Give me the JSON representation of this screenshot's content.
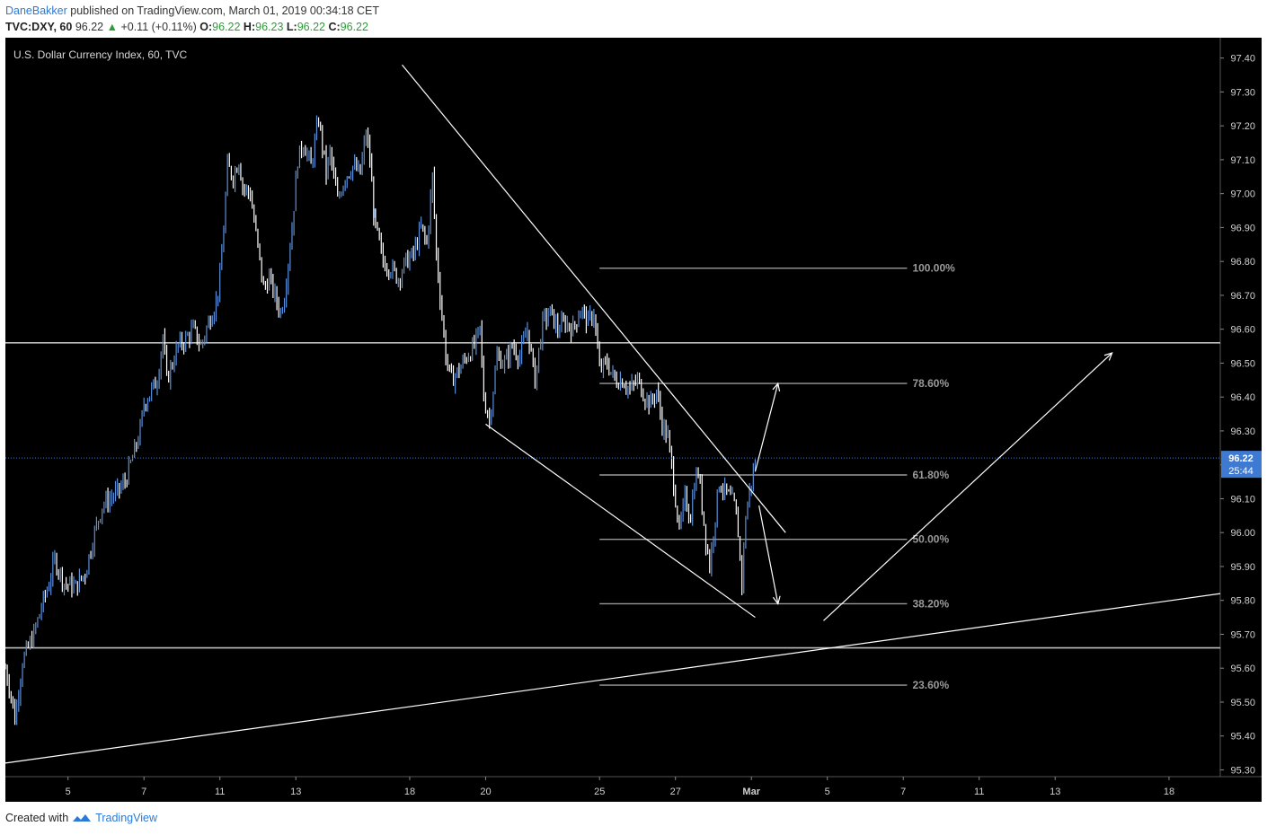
{
  "header": {
    "author": "DaneBakker",
    "published_text": "published on TradingView.com, March 01, 2019 00:34:18 CET",
    "symbol": "TVC:DXY, 60",
    "last_price": "96.22",
    "change": "+0.11 (+0.11%)",
    "o_label": "O:",
    "o_value": "96.22",
    "h_label": "H:",
    "h_value": "96.23",
    "l_label": "L:",
    "l_value": "96.22",
    "c_label": "C:",
    "c_value": "96.22"
  },
  "footer": {
    "created_with": "Created with",
    "brand": "TradingView"
  },
  "colors": {
    "background": "#000000",
    "up_candle": "#5b8fd9",
    "down_candle": "#ffffff",
    "price_tag": "#3f7ad2",
    "fib_line": "#9a9a9a",
    "trend_line": "#ffffff"
  },
  "chart_data": {
    "type": "candlestick",
    "title": "U.S. Dollar Currency Index, 60, TVC",
    "ylim": [
      95.28,
      97.46
    ],
    "y_ticks": [
      "97.40",
      "97.30",
      "97.20",
      "97.10",
      "97.00",
      "96.90",
      "96.80",
      "96.70",
      "96.60",
      "96.50",
      "96.40",
      "96.30",
      "96.20",
      "96.10",
      "96.00",
      "95.90",
      "95.80",
      "95.70",
      "95.60",
      "95.50",
      "95.40",
      "95.30"
    ],
    "x_ticks": [
      {
        "label": "5",
        "day": 0
      },
      {
        "label": "7",
        "day": 2
      },
      {
        "label": "11",
        "day": 4
      },
      {
        "label": "13",
        "day": 6
      },
      {
        "label": "18",
        "day": 9
      },
      {
        "label": "20",
        "day": 11
      },
      {
        "label": "25",
        "day": 14
      },
      {
        "label": "27",
        "day": 16
      },
      {
        "label": "Mar",
        "day": 18
      },
      {
        "label": "5",
        "day": 20
      },
      {
        "label": "7",
        "day": 22
      },
      {
        "label": "11",
        "day": 24
      },
      {
        "label": "13",
        "day": 26
      },
      {
        "label": "18",
        "day": 29
      }
    ],
    "x_range_days": [
      -1.65,
      30.35
    ],
    "price_path": [
      [
        -1.65,
        95.6
      ],
      [
        -1.5,
        95.52
      ],
      [
        -1.4,
        95.45
      ],
      [
        -1.2,
        95.62
      ],
      [
        -0.9,
        95.7
      ],
      [
        -0.7,
        95.78
      ],
      [
        -0.5,
        95.85
      ],
      [
        -0.35,
        95.92
      ],
      [
        -0.1,
        95.85
      ],
      [
        0.2,
        95.84
      ],
      [
        0.45,
        95.88
      ],
      [
        0.7,
        96.0
      ],
      [
        0.9,
        96.08
      ],
      [
        1.1,
        96.1
      ],
      [
        1.3,
        96.12
      ],
      [
        1.5,
        96.15
      ],
      [
        1.7,
        96.22
      ],
      [
        1.9,
        96.3
      ],
      [
        2.0,
        96.38
      ],
      [
        2.2,
        96.42
      ],
      [
        2.35,
        96.45
      ],
      [
        2.5,
        96.58
      ],
      [
        2.6,
        96.45
      ],
      [
        2.75,
        96.5
      ],
      [
        2.9,
        96.55
      ],
      [
        3.1,
        96.57
      ],
      [
        3.3,
        96.6
      ],
      [
        3.5,
        96.55
      ],
      [
        3.7,
        96.62
      ],
      [
        3.9,
        96.68
      ],
      [
        4.0,
        96.75
      ],
      [
        4.1,
        96.9
      ],
      [
        4.2,
        97.08
      ],
      [
        4.35,
        97.05
      ],
      [
        4.5,
        97.1
      ],
      [
        4.6,
        97.02
      ],
      [
        4.8,
        97.0
      ],
      [
        4.95,
        96.88
      ],
      [
        5.15,
        96.72
      ],
      [
        5.3,
        96.75
      ],
      [
        5.5,
        96.68
      ],
      [
        5.6,
        96.65
      ],
      [
        5.7,
        96.7
      ],
      [
        5.9,
        96.9
      ],
      [
        6.05,
        97.1
      ],
      [
        6.2,
        97.15
      ],
      [
        6.4,
        97.08
      ],
      [
        6.6,
        97.22
      ],
      [
        6.8,
        97.06
      ],
      [
        6.9,
        97.12
      ],
      [
        7.1,
        96.98
      ],
      [
        7.3,
        97.05
      ],
      [
        7.5,
        97.08
      ],
      [
        7.7,
        97.06
      ],
      [
        7.85,
        97.18
      ],
      [
        7.95,
        97.1
      ],
      [
        8.05,
        96.95
      ],
      [
        8.1,
        96.9
      ],
      [
        8.3,
        96.8
      ],
      [
        8.5,
        96.78
      ],
      [
        8.7,
        96.75
      ],
      [
        8.9,
        96.8
      ],
      [
        9.1,
        96.82
      ],
      [
        9.3,
        96.9
      ],
      [
        9.45,
        96.85
      ],
      [
        9.6,
        97.05
      ],
      [
        9.7,
        96.82
      ],
      [
        9.8,
        96.7
      ],
      [
        9.95,
        96.52
      ],
      [
        10.1,
        96.45
      ],
      [
        10.3,
        96.48
      ],
      [
        10.5,
        96.52
      ],
      [
        10.7,
        96.55
      ],
      [
        10.85,
        96.6
      ],
      [
        10.95,
        96.4
      ],
      [
        11.1,
        96.33
      ],
      [
        11.3,
        96.52
      ],
      [
        11.5,
        96.5
      ],
      [
        11.7,
        96.55
      ],
      [
        11.9,
        96.52
      ],
      [
        12.1,
        96.6
      ],
      [
        12.3,
        96.45
      ],
      [
        12.5,
        96.62
      ],
      [
        12.7,
        96.65
      ],
      [
        12.9,
        96.6
      ],
      [
        13.1,
        96.62
      ],
      [
        13.3,
        96.6
      ],
      [
        13.5,
        96.66
      ],
      [
        13.7,
        96.62
      ],
      [
        13.85,
        96.65
      ],
      [
        14.0,
        96.48
      ],
      [
        14.2,
        96.5
      ],
      [
        14.4,
        96.45
      ],
      [
        14.6,
        96.45
      ],
      [
        14.8,
        96.42
      ],
      [
        15.0,
        96.45
      ],
      [
        15.2,
        96.4
      ],
      [
        15.35,
        96.38
      ],
      [
        15.5,
        96.42
      ],
      [
        15.65,
        96.32
      ],
      [
        15.8,
        96.28
      ],
      [
        15.95,
        96.15
      ],
      [
        16.1,
        96.0
      ],
      [
        16.25,
        96.1
      ],
      [
        16.4,
        96.05
      ],
      [
        16.5,
        96.15
      ],
      [
        16.6,
        96.18
      ],
      [
        16.7,
        96.08
      ],
      [
        16.8,
        95.98
      ],
      [
        16.9,
        95.9
      ],
      [
        17.0,
        96.0
      ],
      [
        17.15,
        96.15
      ],
      [
        17.3,
        96.12
      ],
      [
        17.45,
        96.1
      ],
      [
        17.55,
        96.08
      ],
      [
        17.65,
        96.0
      ],
      [
        17.75,
        95.85
      ],
      [
        17.85,
        96.05
      ],
      [
        17.95,
        96.12
      ],
      [
        18.05,
        96.18
      ],
      [
        18.15,
        96.22
      ]
    ],
    "fib_levels": [
      {
        "label": "100.00%",
        "price": 96.78
      },
      {
        "label": "78.60%",
        "price": 96.44
      },
      {
        "label": "61.80%",
        "price": 96.17
      },
      {
        "label": "50.00%",
        "price": 95.98
      },
      {
        "label": "38.20%",
        "price": 95.79
      },
      {
        "label": "23.60%",
        "price": 95.55
      }
    ],
    "fib_x_range": [
      14.0,
      22.1
    ],
    "horizontal_levels": [
      96.56,
      95.66
    ],
    "trend_lines": [
      {
        "from": [
          8.8,
          97.38
        ],
        "to": [
          18.9,
          96.0
        ]
      },
      {
        "from": [
          11.0,
          96.32
        ],
        "to": [
          18.1,
          95.75
        ]
      },
      {
        "from": [
          -1.65,
          95.32
        ],
        "to": [
          30.35,
          95.82
        ]
      }
    ],
    "arrows": [
      {
        "from": [
          18.1,
          96.18
        ],
        "to": [
          18.7,
          96.44
        ]
      },
      {
        "from": [
          18.2,
          96.08
        ],
        "to": [
          18.7,
          95.79
        ]
      },
      {
        "from": [
          19.9,
          95.74
        ],
        "to": [
          27.5,
          96.53
        ]
      }
    ],
    "current_price": {
      "price": 96.22,
      "label": "96.22",
      "countdown": "25:44"
    }
  }
}
